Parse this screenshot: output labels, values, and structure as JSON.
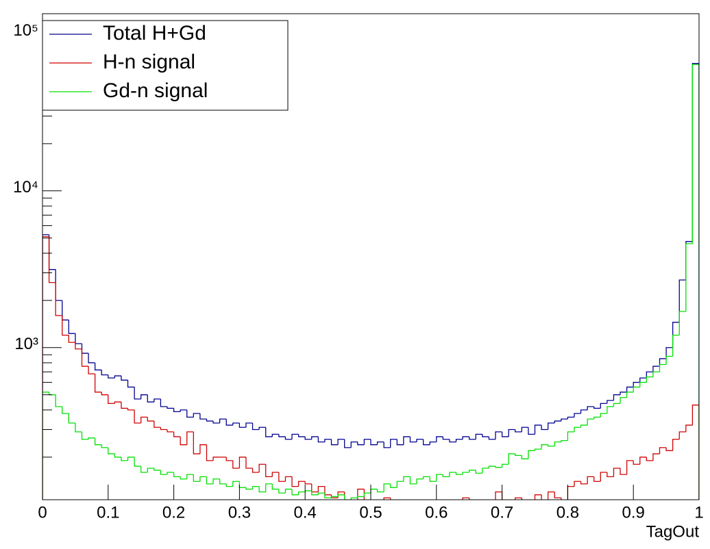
{
  "chart_data": {
    "type": "histogram",
    "x_label": "TagOut",
    "log_y": true,
    "legend": "top-left",
    "bins": [
      0,
      0.01,
      0.02,
      0.03,
      0.04,
      0.05,
      0.06,
      0.07,
      0.08,
      0.09,
      0.1,
      0.11,
      0.12,
      0.13,
      0.14,
      0.15,
      0.16,
      0.17,
      0.18,
      0.19,
      0.2,
      0.21,
      0.22,
      0.23,
      0.24,
      0.25,
      0.26,
      0.27,
      0.28,
      0.29,
      0.3,
      0.31,
      0.32,
      0.33,
      0.34,
      0.35,
      0.36,
      0.37,
      0.38,
      0.39,
      0.4,
      0.41,
      0.42,
      0.43,
      0.44,
      0.45,
      0.46,
      0.47,
      0.48,
      0.49,
      0.5,
      0.51,
      0.52,
      0.53,
      0.54,
      0.55,
      0.56,
      0.57,
      0.58,
      0.59,
      0.6,
      0.61,
      0.62,
      0.63,
      0.64,
      0.65,
      0.66,
      0.67,
      0.68,
      0.69,
      0.7,
      0.71,
      0.72,
      0.73,
      0.74,
      0.75,
      0.76,
      0.77,
      0.78,
      0.79,
      0.8,
      0.81,
      0.82,
      0.83,
      0.84,
      0.85,
      0.86,
      0.87,
      0.88,
      0.89,
      0.9,
      0.91,
      0.92,
      0.93,
      0.94,
      0.95,
      0.96,
      0.97,
      0.98,
      0.99,
      1
    ],
    "series": [
      {
        "name": "Total H+Gd",
        "color": "#000090",
        "values": [
          5250,
          3150,
          2000,
          1500,
          1230,
          1060,
          920,
          800,
          720,
          670,
          640,
          660,
          620,
          560,
          470,
          500,
          450,
          470,
          420,
          410,
          390,
          400,
          360,
          380,
          350,
          340,
          330,
          350,
          320,
          330,
          310,
          330,
          300,
          310,
          270,
          280,
          270,
          260,
          280,
          270,
          260,
          270,
          250,
          260,
          240,
          260,
          230,
          250,
          240,
          260,
          240,
          250,
          230,
          260,
          240,
          270,
          250,
          260,
          240,
          250,
          270,
          260,
          250,
          260,
          270,
          260,
          280,
          270,
          260,
          290,
          270,
          300,
          290,
          310,
          280,
          320,
          300,
          330,
          340,
          350,
          360,
          380,
          400,
          420,
          410,
          440,
          460,
          500,
          520,
          560,
          600,
          640,
          700,
          760,
          850,
          1000,
          1450,
          2700,
          4750,
          65000
        ]
      },
      {
        "name": "H-n signal",
        "color": "#d00000",
        "values": [
          5100,
          2600,
          1600,
          1200,
          1080,
          980,
          760,
          680,
          520,
          500,
          440,
          450,
          410,
          400,
          330,
          360,
          340,
          310,
          300,
          290,
          270,
          240,
          290,
          210,
          240,
          190,
          200,
          200,
          190,
          170,
          200,
          170,
          160,
          180,
          150,
          160,
          140,
          150,
          130,
          140,
          135,
          120,
          130,
          115,
          110,
          120,
          100,
          105,
          125,
          95,
          100,
          90,
          110,
          85,
          95,
          100,
          90,
          105,
          95,
          85,
          90,
          100,
          95,
          85,
          110,
          100,
          90,
          95,
          100,
          120,
          90,
          105,
          110,
          95,
          100,
          115,
          95,
          120,
          110,
          95,
          130,
          140,
          135,
          150,
          140,
          160,
          150,
          170,
          155,
          190,
          180,
          200,
          190,
          210,
          230,
          220,
          260,
          290,
          320,
          430
        ]
      },
      {
        "name": "Gd-n signal",
        "color": "#00e000",
        "values": [
          520,
          500,
          420,
          380,
          330,
          290,
          260,
          265,
          240,
          230,
          210,
          200,
          190,
          200,
          175,
          160,
          170,
          165,
          155,
          160,
          150,
          145,
          155,
          140,
          150,
          135,
          145,
          135,
          130,
          140,
          128,
          125,
          130,
          120,
          135,
          125,
          118,
          125,
          115,
          120,
          122,
          115,
          118,
          110,
          112,
          115,
          105,
          110,
          112,
          118,
          125,
          120,
          135,
          128,
          140,
          150,
          135,
          145,
          150,
          140,
          155,
          150,
          160,
          155,
          160,
          165,
          158,
          170,
          175,
          172,
          180,
          210,
          205,
          195,
          220,
          225,
          240,
          235,
          250,
          255,
          290,
          310,
          320,
          350,
          360,
          380,
          420,
          440,
          480,
          520,
          560,
          600,
          650,
          700,
          780,
          880,
          1200,
          1700,
          4600,
          64000
        ]
      }
    ],
    "xlim": [
      0,
      1
    ],
    "xticks": [
      0,
      0.1,
      0.2,
      0.3,
      0.4,
      0.5,
      0.6,
      0.7,
      0.8,
      0.9,
      1
    ],
    "ylim": [
      107,
      135000
    ],
    "yticks": [
      {
        "value": 1000,
        "label": "10³"
      },
      {
        "value": 10000,
        "label": "10⁴"
      },
      {
        "value": 100000,
        "label": "10⁵"
      }
    ],
    "y_minor_ticks": [
      200,
      300,
      400,
      500,
      600,
      700,
      800,
      900,
      2000,
      3000,
      4000,
      5000,
      6000,
      7000,
      8000,
      9000,
      20000,
      30000,
      40000,
      50000,
      60000,
      70000,
      80000,
      90000
    ]
  }
}
